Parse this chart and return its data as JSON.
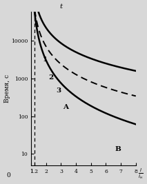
{
  "ylabel": "Время, с",
  "t_label": "t",
  "xlabel_frac_top": "I",
  "xlabel_frac_bot": "Iн",
  "bg_color": "#d8d8d8",
  "xlim": [
    1,
    8
  ],
  "ylim": [
    5,
    60000
  ],
  "xtick_vals": [
    1,
    1.2,
    2,
    3,
    4,
    5,
    6,
    7,
    8
  ],
  "xtick_labels": [
    "1",
    "1.2",
    "2",
    "3",
    "4",
    "5",
    "6",
    "7",
    "8"
  ],
  "ytick_vals": [
    10,
    100,
    1000,
    10000
  ],
  "ytick_labels": [
    "10",
    "100",
    "1000",
    "10000"
  ],
  "y0_label": "0",
  "dashed_x": 1.2,
  "label1": "1",
  "label2": "2",
  "label3": "3",
  "labelA": "A",
  "labelB": "B",
  "curve1": {
    "k": 22000,
    "alpha": 1.35,
    "x_start": 1.008
  },
  "curve2_dashed": {
    "k": 7000,
    "alpha": 1.55,
    "x_start": 1.008
  },
  "curve3": {
    "k": 3000,
    "alpha": 2.0,
    "x_start": 1.008
  },
  "converge_x": 6.3,
  "converge_y": 14
}
